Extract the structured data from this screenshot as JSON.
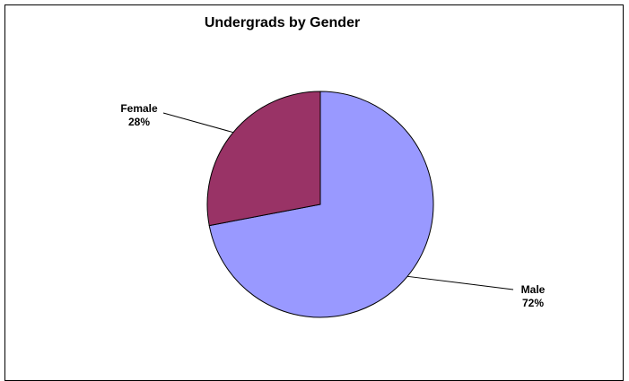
{
  "chart_data": {
    "type": "pie",
    "title": "Undergrads by Gender",
    "slices": [
      {
        "label": "Male",
        "percent_label": "72%",
        "value": 72,
        "color": "#9999ff"
      },
      {
        "label": "Female",
        "percent_label": "28%",
        "value": 28,
        "color": "#993366"
      }
    ],
    "start_angle_deg": 0,
    "direction": "clockwise",
    "legend": "none"
  }
}
